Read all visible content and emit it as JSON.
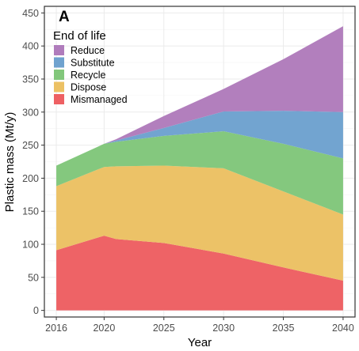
{
  "chart_data": {
    "type": "area",
    "stacked": true,
    "panel_label": "A",
    "xlabel": "Year",
    "ylabel": "Plastic mass (Mt/y)",
    "xlim": [
      2015,
      2041
    ],
    "ylim": [
      -10,
      460
    ],
    "x_ticks": [
      2016,
      2020,
      2025,
      2030,
      2035,
      2040
    ],
    "y_ticks": [
      0,
      50,
      100,
      150,
      200,
      250,
      300,
      350,
      400,
      450
    ],
    "grid": true,
    "legend": {
      "title": "End of life",
      "placement": "top-left",
      "order": [
        "Reduce",
        "Substitute",
        "Recycle",
        "Dispose",
        "Mismanaged"
      ]
    },
    "x": [
      2016,
      2020,
      2021,
      2025,
      2030,
      2035,
      2040
    ],
    "series": [
      {
        "name": "Mismanaged",
        "color": "#ee6063",
        "values": [
          91,
          113,
          108,
          102,
          86,
          65,
          45
        ]
      },
      {
        "name": "Dispose",
        "color": "#ecc164",
        "values": [
          97,
          104,
          110,
          117,
          129,
          115,
          100
        ]
      },
      {
        "name": "Recycle",
        "color": "#82c77b",
        "values": [
          31,
          35,
          37,
          45,
          56,
          72,
          85
        ]
      },
      {
        "name": "Substitute",
        "color": "#6fa2cf",
        "values": [
          0,
          0,
          2,
          12,
          30,
          50,
          70
        ]
      },
      {
        "name": "Reduce",
        "color": "#b07cbc",
        "values": [
          0,
          0,
          2,
          18,
          34,
          78,
          130
        ]
      }
    ]
  }
}
